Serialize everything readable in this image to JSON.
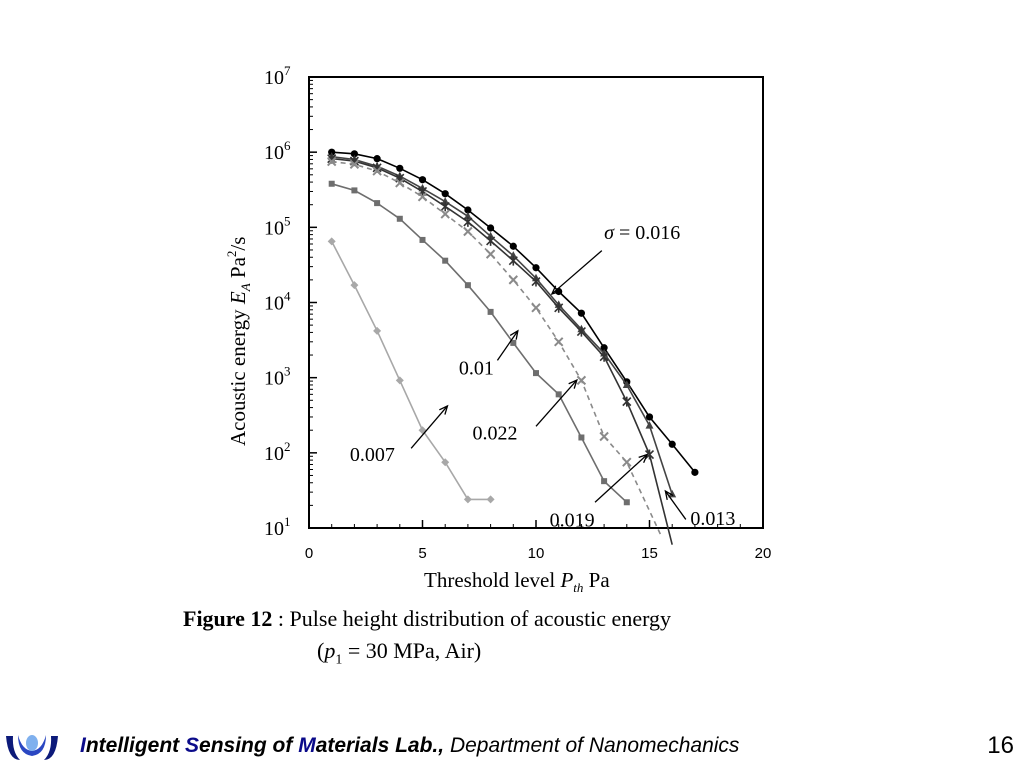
{
  "chart_data": {
    "type": "line",
    "yscale": "log",
    "xlim": [
      0,
      20
    ],
    "ylim_exp": [
      1,
      7
    ],
    "x_ticks": [
      "0",
      "5",
      "10",
      "15",
      "20"
    ],
    "y_ticks": [
      {
        "base": "10",
        "exp": "1"
      },
      {
        "base": "10",
        "exp": "2"
      },
      {
        "base": "10",
        "exp": "3"
      },
      {
        "base": "10",
        "exp": "4"
      },
      {
        "base": "10",
        "exp": "5"
      },
      {
        "base": "10",
        "exp": "6"
      },
      {
        "base": "10",
        "exp": "7"
      }
    ],
    "xlabel": {
      "text": "Threshold level",
      "sym": "P",
      "sub": "th",
      "unit": "Pa"
    },
    "ylabel": {
      "text": "Acoustic energy",
      "sym": "E",
      "sub": "A",
      "unit": "Pa",
      "unit_sup": "2",
      "unit_tail": "/s"
    },
    "series": [
      {
        "label": "σ = 0.016",
        "color": "#000000",
        "marker": "circle",
        "dash": false,
        "x": [
          1,
          2,
          3,
          4,
          5,
          6,
          7,
          8,
          9,
          10,
          11,
          12,
          13,
          14,
          15,
          16,
          17
        ],
        "y": [
          1000000,
          950000,
          820000,
          610000,
          430000,
          280000,
          170000,
          98000,
          56000,
          29000,
          14000,
          7200,
          2500,
          880,
          300,
          130,
          55
        ]
      },
      {
        "label": "0.013",
        "color": "#444444",
        "marker": "triangle",
        "dash": false,
        "x": [
          1,
          2,
          3,
          4,
          5,
          6,
          7,
          8,
          9,
          10,
          11,
          12,
          13,
          14,
          15,
          16
        ],
        "y": [
          870000,
          800000,
          650000,
          480000,
          330000,
          220000,
          140000,
          76000,
          42000,
          21000,
          9300,
          4400,
          2100,
          800,
          230,
          28
        ]
      },
      {
        "label": "",
        "color": "#333333",
        "marker": "asterisk",
        "dash": false,
        "x": [
          1,
          2,
          3,
          4,
          5,
          6,
          7,
          8,
          9,
          10,
          11,
          12,
          13,
          14,
          15,
          16
        ],
        "y": [
          820000,
          760000,
          620000,
          450000,
          300000,
          190000,
          118000,
          66000,
          36000,
          19000,
          8500,
          4100,
          1900,
          480,
          95,
          6
        ]
      },
      {
        "label": "0.022",
        "color": "#8a8a8a",
        "marker": "x",
        "dash": true,
        "x": [
          1,
          2,
          3,
          4,
          5,
          6,
          7,
          8,
          9,
          10,
          11,
          12,
          13,
          14,
          15.5
        ],
        "y": [
          750000,
          690000,
          560000,
          390000,
          255000,
          150000,
          88000,
          44000,
          20000,
          8500,
          3000,
          920,
          165,
          75,
          8
        ]
      },
      {
        "label": "0.01",
        "color": "#6e6e6e",
        "marker": "square",
        "dash": false,
        "x": [
          1,
          2,
          3,
          4,
          5,
          6,
          7,
          8,
          9,
          10,
          11,
          12,
          13,
          14
        ],
        "y": [
          380000,
          310000,
          210000,
          130000,
          68000,
          36000,
          17000,
          7500,
          2900,
          1150,
          600,
          160,
          42,
          22
        ]
      },
      {
        "label": "0.007",
        "color": "#a8a8a8",
        "marker": "diamond",
        "dash": false,
        "x": [
          1,
          2,
          3,
          4,
          5,
          6,
          7,
          8
        ],
        "y": [
          65000,
          17000,
          4200,
          920,
          200,
          75,
          24,
          24
        ]
      }
    ],
    "annotations": [
      {
        "text": "σ = 0.016",
        "tip": [
          10.7,
          13000
        ],
        "tail": [
          12.9,
          49000
        ],
        "tx": 13.0,
        "ty": 70000
      },
      {
        "text": "0.01",
        "tip": [
          9.2,
          4200
        ],
        "tail": [
          8.3,
          1700
        ],
        "tx": 6.6,
        "ty": 1100
      },
      {
        "text": "0.022",
        "tip": [
          11.8,
          930
        ],
        "tail": [
          10.0,
          225
        ],
        "tx": 7.2,
        "ty": 150
      },
      {
        "text": "0.007",
        "tip": [
          6.1,
          420
        ],
        "tail": [
          4.5,
          115
        ],
        "tx": 1.8,
        "ty": 78
      },
      {
        "text": "0.019",
        "tip": [
          14.9,
          95
        ],
        "tail": [
          12.6,
          22
        ],
        "tx": 10.6,
        "ty": 10.5
      },
      {
        "text": "0.013",
        "tip": [
          15.7,
          31
        ],
        "tail": [
          16.6,
          13
        ],
        "tx": 16.8,
        "ty": 11
      }
    ]
  },
  "caption": {
    "fig": "Figure 12",
    "text": " : Pulse height distribution of acoustic energy",
    "line2_pre": "(",
    "line2_sym": "p",
    "line2_sub": "1",
    "line2_post": " = 30 MPa, Air)"
  },
  "footer": {
    "i1": "I",
    "w1": "ntelligent ",
    "i2": "S",
    "w2": "ensing of ",
    "i3": "M",
    "w3": "aterials ",
    "i4": "L",
    "w4": "ab.,",
    "rest": " Department of Nanomechanics",
    "page": "16"
  }
}
